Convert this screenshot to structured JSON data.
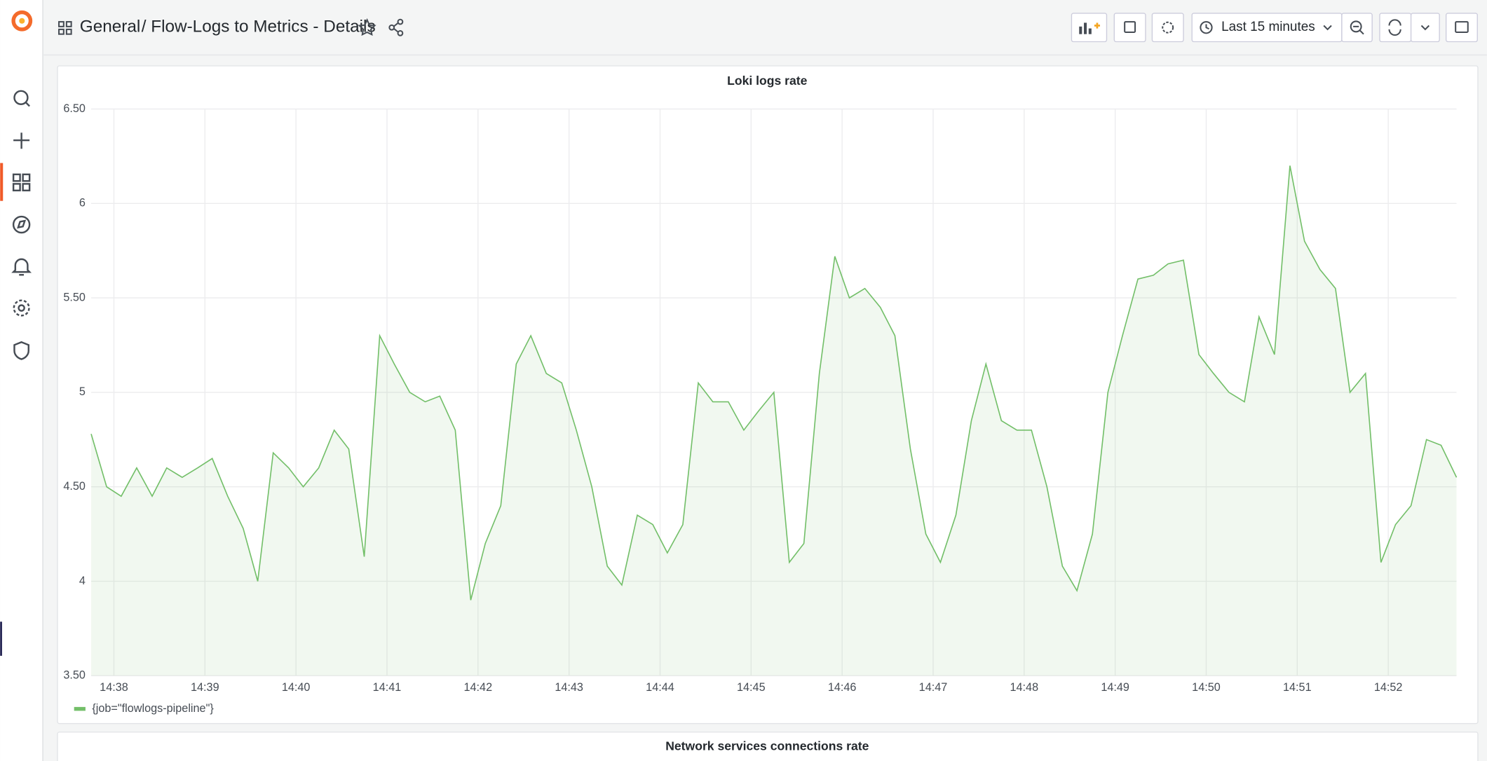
{
  "header": {
    "folder": "General",
    "dashboard": "/ Flow-Logs to Metrics - Details",
    "time_range": "Last 15 minutes"
  },
  "chart_data": {
    "type": "line",
    "title": "Loki logs rate",
    "x": [
      877.75,
      877.92,
      878.08,
      878.25,
      878.42,
      878.58,
      878.75,
      878.92,
      879.08,
      879.25,
      879.42,
      879.58,
      879.75,
      879.92,
      880.08,
      880.25,
      880.42,
      880.58,
      880.75,
      880.92,
      881.08,
      881.25,
      881.42,
      881.58,
      881.75,
      881.92,
      882.08,
      882.25,
      882.42,
      882.58,
      882.75,
      882.92,
      883.08,
      883.25,
      883.42,
      883.58,
      883.75,
      883.92,
      884.08,
      884.25,
      884.42,
      884.58,
      884.75,
      884.92,
      885.08,
      885.25,
      885.42,
      885.58,
      885.75,
      885.92,
      886.08,
      886.25,
      886.42,
      886.58,
      886.75,
      886.92,
      887.08,
      887.25,
      887.42,
      887.58,
      887.75,
      887.92,
      888.08,
      888.25,
      888.42,
      888.58,
      888.75,
      888.92,
      889.08,
      889.25,
      889.42,
      889.58,
      889.75,
      889.92,
      890.08,
      890.25,
      890.42,
      890.58,
      890.75,
      890.92,
      891.08,
      891.25,
      891.42,
      891.58,
      891.75,
      891.92,
      892.08,
      892.25,
      892.42,
      892.58,
      892.75
    ],
    "series": [
      {
        "name": "{job=\"flowlogs-pipeline\"}",
        "color": "#73bf69",
        "values": [
          4.78,
          4.5,
          4.45,
          4.6,
          4.45,
          4.6,
          4.55,
          4.6,
          4.65,
          4.45,
          4.28,
          4.0,
          4.68,
          4.6,
          4.5,
          4.6,
          4.8,
          4.7,
          4.13,
          5.3,
          5.15,
          5.0,
          4.95,
          4.98,
          4.8,
          3.9,
          4.2,
          4.4,
          5.15,
          5.3,
          5.1,
          5.05,
          4.8,
          4.5,
          4.08,
          3.98,
          4.35,
          4.3,
          4.15,
          4.3,
          5.05,
          4.95,
          4.95,
          4.8,
          4.9,
          5.0,
          4.1,
          4.2,
          5.1,
          5.72,
          5.5,
          5.55,
          5.45,
          5.3,
          4.7,
          4.25,
          4.1,
          4.35,
          4.85,
          5.15,
          4.85,
          4.8,
          4.8,
          4.5,
          4.08,
          3.95,
          4.25,
          5.0,
          5.3,
          5.6,
          5.62,
          5.68,
          5.7,
          5.2,
          5.1,
          5.0,
          4.95,
          5.4,
          5.2,
          6.2,
          5.8,
          5.65,
          5.55,
          5.0,
          5.1,
          4.1,
          4.3,
          4.4,
          4.75,
          4.72,
          4.55
        ]
      }
    ],
    "xlim": [
      877.75,
      892.75
    ],
    "xticks": [
      {
        "value": 878,
        "label": "14:38"
      },
      {
        "value": 879,
        "label": "14:39"
      },
      {
        "value": 880,
        "label": "14:40"
      },
      {
        "value": 881,
        "label": "14:41"
      },
      {
        "value": 882,
        "label": "14:42"
      },
      {
        "value": 883,
        "label": "14:43"
      },
      {
        "value": 884,
        "label": "14:44"
      },
      {
        "value": 885,
        "label": "14:45"
      },
      {
        "value": 886,
        "label": "14:46"
      },
      {
        "value": 887,
        "label": "14:47"
      },
      {
        "value": 888,
        "label": "14:48"
      },
      {
        "value": 889,
        "label": "14:49"
      },
      {
        "value": 890,
        "label": "14:50"
      },
      {
        "value": 891,
        "label": "14:51"
      },
      {
        "value": 892,
        "label": "14:52"
      }
    ],
    "ylim": [
      3.5,
      6.5
    ],
    "yticks": [
      {
        "value": 3.5,
        "label": "3.50"
      },
      4,
      {
        "value": 4.5,
        "label": "4.50"
      },
      5,
      {
        "value": 5.5,
        "label": "5.50"
      },
      6,
      {
        "value": 6.5,
        "label": "6.50"
      }
    ],
    "grid": true
  },
  "next_panel": {
    "title": "Network services connections rate"
  }
}
